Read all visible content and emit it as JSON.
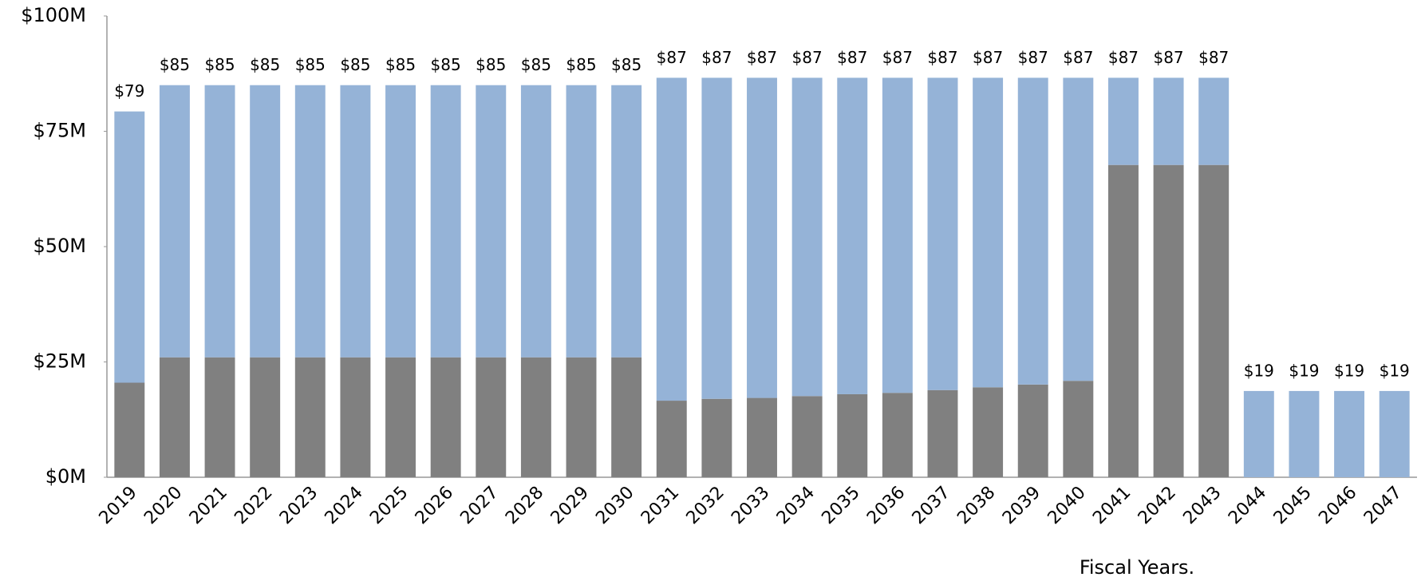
{
  "chart_data": {
    "type": "stacked_bar",
    "x_label": "Fiscal Years.",
    "categories": [
      "2019",
      "2020",
      "2021",
      "2022",
      "2023",
      "2024",
      "2025",
      "2026",
      "2027",
      "2028",
      "2029",
      "2030",
      "2031",
      "2032",
      "2033",
      "2034",
      "2035",
      "2036",
      "2037",
      "2038",
      "2039",
      "2040",
      "2041",
      "2042",
      "2043",
      "2044",
      "2045",
      "2046",
      "2047"
    ],
    "series": [
      {
        "color": "#808080",
        "values": [
          20.5,
          26,
          26,
          26,
          26,
          26,
          26,
          26,
          26,
          26,
          26,
          26,
          16.6,
          17.0,
          17.2,
          17.6,
          18.0,
          18.3,
          18.9,
          19.5,
          20.1,
          20.9,
          67.7,
          67.7,
          67.7,
          0,
          0,
          0,
          0
        ]
      },
      {
        "color": "#95b3d7",
        "values": [
          58.8,
          59,
          59,
          59,
          59,
          59,
          59,
          59,
          59,
          59,
          59,
          59,
          70.0,
          69.6,
          69.4,
          69.0,
          68.6,
          68.3,
          67.7,
          67.1,
          66.5,
          65.7,
          18.9,
          18.9,
          18.9,
          18.7,
          18.7,
          18.7,
          18.7
        ]
      }
    ],
    "total_labels": [
      "$79",
      "$85",
      "$85",
      "$85",
      "$85",
      "$85",
      "$85",
      "$85",
      "$85",
      "$85",
      "$85",
      "$85",
      "$87",
      "$87",
      "$87",
      "$87",
      "$87",
      "$87",
      "$87",
      "$87",
      "$87",
      "$87",
      "$87",
      "$87",
      "$87",
      "$19",
      "$19",
      "$19",
      "$19"
    ],
    "ylim": [
      0,
      100
    ],
    "yticks": [
      {
        "value": 0,
        "label": "$0M"
      },
      {
        "value": 25,
        "label": "$25M"
      },
      {
        "value": 50,
        "label": "$50M"
      },
      {
        "value": 75,
        "label": "$75M"
      },
      {
        "value": 100,
        "label": "$100M"
      }
    ]
  }
}
